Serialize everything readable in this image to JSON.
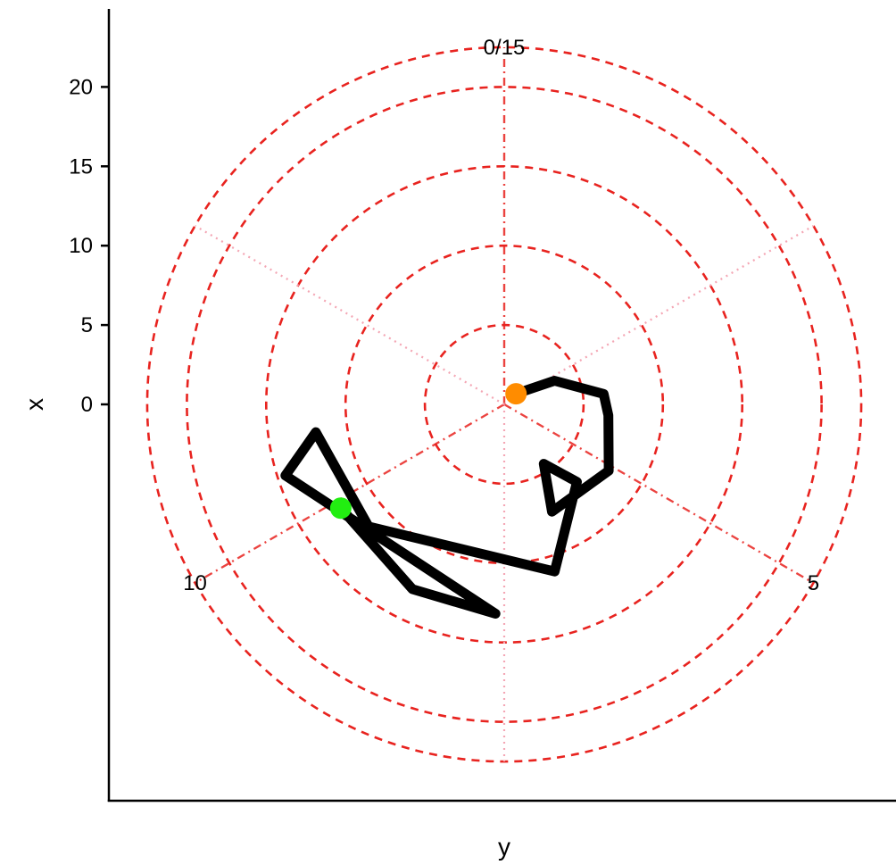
{
  "chart_data": {
    "type": "line",
    "coord": "polar",
    "title": "",
    "xlabel": "y",
    "ylabel": "x",
    "theta_range": [
      0,
      15
    ],
    "r_range": [
      0,
      22.5
    ],
    "r_tick_labels": [
      "0",
      "5",
      "10",
      "15",
      "20"
    ],
    "r_ticks": [
      0,
      5,
      10,
      15,
      20
    ],
    "theta_labels": [
      {
        "value": 0,
        "label": "0/15"
      },
      {
        "value": 5,
        "label": "5"
      },
      {
        "value": 10,
        "label": "10"
      }
    ],
    "ring_radii": [
      5,
      10,
      15,
      20,
      22.5
    ],
    "ring_style": {
      "color": "#e8231f",
      "dash": "dashed"
    },
    "spoke_values": [
      0,
      2.5,
      5,
      7.5,
      10,
      12.5
    ],
    "spoke_style": {
      "color": "#f4a6b4",
      "dash": "dotted"
    },
    "series": [
      {
        "color": "#000000",
        "points": [
          {
            "theta": 2.0,
            "r": 1.0
          },
          {
            "theta": 2.7,
            "r": 3.5
          },
          {
            "theta": 3.5,
            "r": 6.3
          },
          {
            "theta": 4.0,
            "r": 6.6
          },
          {
            "theta": 5.1,
            "r": 7.8
          },
          {
            "theta": 6.5,
            "r": 7.4
          },
          {
            "theta": 6.1,
            "r": 4.5
          },
          {
            "theta": 5.7,
            "r": 6.7
          },
          {
            "theta": 6.8,
            "r": 11.0
          },
          {
            "theta": 9.5,
            "r": 11.5
          },
          {
            "theta": 10.9,
            "r": 12.0
          },
          {
            "theta": 10.5,
            "r": 14.5
          },
          {
            "theta": 7.6,
            "r": 13.2
          },
          {
            "theta": 8.6,
            "r": 13.0
          },
          {
            "theta": 9.9,
            "r": 12.2
          }
        ]
      }
    ],
    "markers": [
      {
        "theta": 2.0,
        "r": 1.0,
        "color": "#ff8c00"
      },
      {
        "theta": 9.9,
        "r": 12.2,
        "color": "#22ee11"
      }
    ]
  }
}
